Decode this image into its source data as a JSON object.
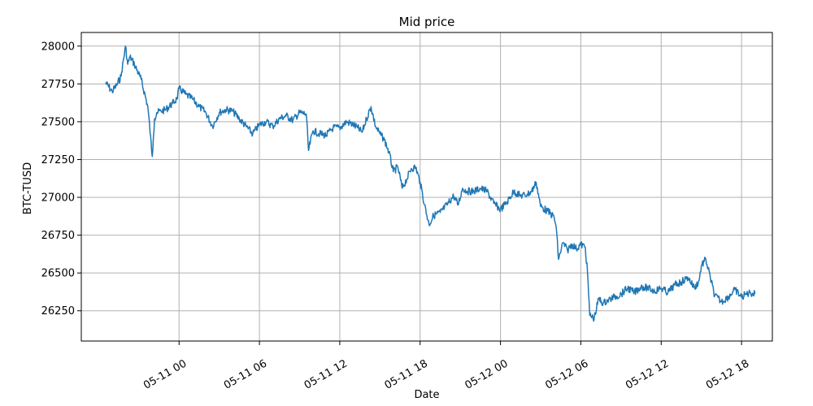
{
  "chart_data": {
    "type": "line",
    "title": "Mid price",
    "xlabel": "Date",
    "ylabel": "BTC-TUSD",
    "grid": true,
    "legend": "none",
    "line_color": "#1f77b4",
    "xlim": [
      "2023-05-10T16:42",
      "2023-05-12T20:18"
    ],
    "ylim": [
      26050,
      28090
    ],
    "x_ticks": [
      {
        "value": "2023-05-11T00:00",
        "label": "05-11 00"
      },
      {
        "value": "2023-05-11T06:00",
        "label": "05-11 06"
      },
      {
        "value": "2023-05-11T12:00",
        "label": "05-11 12"
      },
      {
        "value": "2023-05-11T18:00",
        "label": "05-11 18"
      },
      {
        "value": "2023-05-12T00:00",
        "label": "05-12 00"
      },
      {
        "value": "2023-05-12T06:00",
        "label": "05-12 06"
      },
      {
        "value": "2023-05-12T12:00",
        "label": "05-12 12"
      },
      {
        "value": "2023-05-12T18:00",
        "label": "05-12 18"
      }
    ],
    "y_ticks": [
      {
        "value": 26250,
        "label": "26250"
      },
      {
        "value": 26500,
        "label": "26500"
      },
      {
        "value": 26750,
        "label": "26750"
      },
      {
        "value": 27000,
        "label": "27000"
      },
      {
        "value": 27250,
        "label": "27250"
      },
      {
        "value": 27500,
        "label": "27500"
      },
      {
        "value": 27750,
        "label": "27750"
      },
      {
        "value": 28000,
        "label": "28000"
      }
    ],
    "series": [
      {
        "x": [
          "2023-05-10T18:30",
          "2023-05-10T19:00",
          "2023-05-10T19:20",
          "2023-05-10T19:40",
          "2023-05-10T20:00",
          "2023-05-10T20:10",
          "2023-05-10T20:20",
          "2023-05-10T20:40",
          "2023-05-10T21:10",
          "2023-05-10T21:40",
          "2023-05-10T22:00",
          "2023-05-10T22:05",
          "2023-05-10T22:10",
          "2023-05-10T22:20",
          "2023-05-10T22:40",
          "2023-05-10T23:00",
          "2023-05-10T23:30",
          "2023-05-10T23:50",
          "2023-05-11T00:00",
          "2023-05-11T00:30",
          "2023-05-11T01:00",
          "2023-05-11T01:30",
          "2023-05-11T02:00",
          "2023-05-11T02:30",
          "2023-05-11T03:00",
          "2023-05-11T03:30",
          "2023-05-11T04:00",
          "2023-05-11T04:30",
          "2023-05-11T05:00",
          "2023-05-11T05:30",
          "2023-05-11T06:00",
          "2023-05-11T06:30",
          "2023-05-11T07:00",
          "2023-05-11T07:30",
          "2023-05-11T08:00",
          "2023-05-11T08:30",
          "2023-05-11T09:00",
          "2023-05-11T09:30",
          "2023-05-11T09:40",
          "2023-05-11T10:00",
          "2023-05-11T10:30",
          "2023-05-11T11:00",
          "2023-05-11T11:30",
          "2023-05-11T12:00",
          "2023-05-11T12:30",
          "2023-05-11T13:00",
          "2023-05-11T13:20",
          "2023-05-11T13:40",
          "2023-05-11T14:00",
          "2023-05-11T14:20",
          "2023-05-11T14:40",
          "2023-05-11T15:00",
          "2023-05-11T15:20",
          "2023-05-11T15:40",
          "2023-05-11T16:00",
          "2023-05-11T16:20",
          "2023-05-11T16:40",
          "2023-05-11T17:00",
          "2023-05-11T17:20",
          "2023-05-11T17:40",
          "2023-05-11T18:00",
          "2023-05-11T18:20",
          "2023-05-11T18:40",
          "2023-05-11T19:00",
          "2023-05-11T19:30",
          "2023-05-11T20:00",
          "2023-05-11T20:30",
          "2023-05-11T20:50",
          "2023-05-11T21:10",
          "2023-05-11T21:30",
          "2023-05-11T22:00",
          "2023-05-11T22:30",
          "2023-05-11T23:00",
          "2023-05-11T23:30",
          "2023-05-12T00:00",
          "2023-05-12T00:30",
          "2023-05-12T01:00",
          "2023-05-12T01:30",
          "2023-05-12T02:00",
          "2023-05-12T02:20",
          "2023-05-12T02:40",
          "2023-05-12T03:00",
          "2023-05-12T03:30",
          "2023-05-12T04:00",
          "2023-05-12T04:10",
          "2023-05-12T04:20",
          "2023-05-12T04:40",
          "2023-05-12T05:00",
          "2023-05-12T05:20",
          "2023-05-12T05:40",
          "2023-05-12T06:00",
          "2023-05-12T06:20",
          "2023-05-12T06:30",
          "2023-05-12T06:40",
          "2023-05-12T07:00",
          "2023-05-12T07:20",
          "2023-05-12T07:40",
          "2023-05-12T08:00",
          "2023-05-12T08:30",
          "2023-05-12T09:00",
          "2023-05-12T09:30",
          "2023-05-12T10:00",
          "2023-05-12T10:30",
          "2023-05-12T11:00",
          "2023-05-12T11:30",
          "2023-05-12T12:00",
          "2023-05-12T12:30",
          "2023-05-12T13:00",
          "2023-05-12T13:30",
          "2023-05-12T14:00",
          "2023-05-12T14:30",
          "2023-05-12T14:50",
          "2023-05-12T15:00",
          "2023-05-12T15:20",
          "2023-05-12T15:40",
          "2023-05-12T16:00",
          "2023-05-12T16:30",
          "2023-05-12T17:00",
          "2023-05-12T17:30",
          "2023-05-12T18:00",
          "2023-05-12T18:20",
          "2023-05-12T18:40",
          "2023-05-12T19:00"
        ],
        "values": [
          27760,
          27700,
          27740,
          27800,
          28000,
          27880,
          27930,
          27880,
          27780,
          27600,
          27270,
          27400,
          27520,
          27560,
          27570,
          27580,
          27620,
          27650,
          27720,
          27680,
          27650,
          27600,
          27560,
          27470,
          27560,
          27580,
          27570,
          27520,
          27470,
          27420,
          27480,
          27500,
          27470,
          27520,
          27540,
          27510,
          27560,
          27550,
          27310,
          27440,
          27420,
          27410,
          27460,
          27460,
          27500,
          27480,
          27460,
          27430,
          27520,
          27600,
          27470,
          27420,
          27380,
          27300,
          27170,
          27200,
          27060,
          27120,
          27190,
          27200,
          27100,
          26950,
          26820,
          26880,
          26900,
          26950,
          27010,
          26950,
          27060,
          27040,
          27040,
          27060,
          27040,
          26960,
          26920,
          26970,
          27040,
          27010,
          27020,
          27040,
          27100,
          26940,
          26910,
          26870,
          26800,
          26590,
          26700,
          26650,
          26690,
          26660,
          26690,
          26670,
          26500,
          26220,
          26200,
          26330,
          26300,
          26320,
          26340,
          26360,
          26400,
          26370,
          26410,
          26400,
          26380,
          26400,
          26370,
          26420,
          26440,
          26470,
          26400,
          26450,
          26550,
          26590,
          26470,
          26350,
          26310,
          26340,
          26390,
          26340,
          26360,
          26370,
          26360
        ]
      }
    ]
  }
}
